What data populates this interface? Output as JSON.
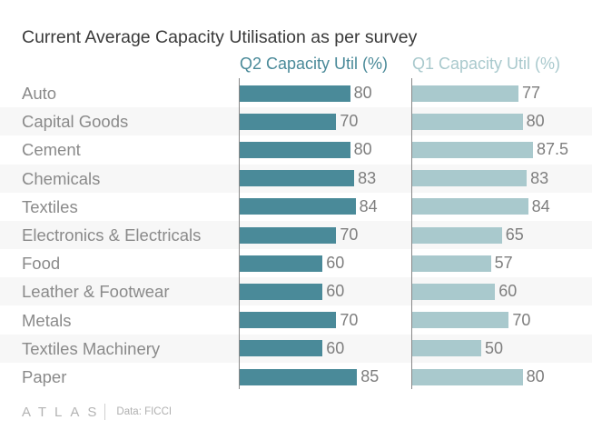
{
  "chart_data": {
    "type": "bar",
    "title": "Current Average Capacity Utilisation as per survey",
    "categories": [
      "Auto",
      "Capital Goods",
      "Cement",
      "Chemicals",
      "Textiles",
      "Electronics & Electricals",
      "Food",
      "Leather & Footwear",
      "Metals",
      "Textiles Machinery",
      "Paper"
    ],
    "series": [
      {
        "name": "Q2 Capacity Util (%)",
        "color": "#4a8a99",
        "values": [
          80,
          70,
          80,
          83,
          84,
          70,
          60,
          60,
          70,
          60,
          85
        ],
        "labels": [
          "80",
          "70",
          "80",
          "83",
          "84",
          "70",
          "60",
          "60",
          "70",
          "60",
          "85"
        ]
      },
      {
        "name": "Q1 Capacity Util (%)",
        "color": "#a9c9cd",
        "values": [
          77,
          80,
          87.5,
          83,
          84,
          65,
          57,
          60,
          70,
          50,
          80
        ],
        "labels": [
          "77",
          "80",
          "87.5",
          "83",
          "84",
          "65",
          "57",
          "60",
          "70",
          "50",
          "80"
        ]
      }
    ],
    "orientation": "horizontal",
    "grid": false,
    "legend": "top, as column headers"
  },
  "footer": {
    "brand": "ATLAS",
    "source": "Data: FICCI"
  }
}
